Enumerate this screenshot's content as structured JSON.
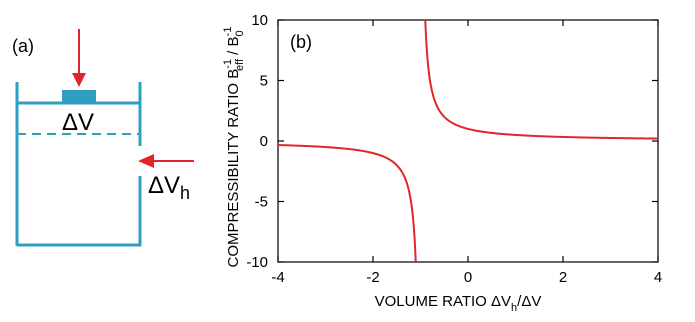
{
  "panel_a": {
    "label": "(a)",
    "delta_v": "ΔV",
    "delta_vh_main": "ΔV",
    "delta_vh_sub": "h",
    "container_color": "#2e9fc0",
    "arrow_color": "#e0262b"
  },
  "chart_data": {
    "type": "line",
    "panel_label": "(b)",
    "xlabel": "VOLUME RATIO   ΔV",
    "xlabel_sub": "h",
    "xlabel_tail": "/ΔV",
    "ylabel": "COMPRESSIBILITY RATIO  B",
    "ylabel_sup1": "-1",
    "ylabel_sub": "eff",
    "ylabel_mid": " / B",
    "ylabel_sub2": "0",
    "ylabel_sup2": "-1",
    "xlim": [
      -4,
      4
    ],
    "ylim": [
      -10,
      10
    ],
    "x_ticks": [
      -4,
      -2,
      0,
      2,
      4
    ],
    "x_tick_labels": [
      "-4",
      "-2",
      "0",
      "2",
      "4"
    ],
    "y_ticks": [
      -10,
      -5,
      0,
      5,
      10
    ],
    "y_tick_labels": [
      "-10",
      "-5",
      "0",
      "5",
      "10"
    ],
    "grid": false,
    "line_color": "#e0262b",
    "series": [
      {
        "x": [
          -4.0,
          -3.5,
          -3.0,
          -2.5,
          -2.0,
          -1.8,
          -1.6,
          -1.4,
          -1.3,
          -1.2,
          -1.15,
          -1.1
        ],
        "y": [
          -0.333,
          -0.4,
          -0.5,
          -0.667,
          -1.0,
          -1.25,
          -1.667,
          -2.5,
          -3.333,
          -5.0,
          -6.667,
          -10.0
        ]
      },
      {
        "x": [
          -0.9,
          -0.85,
          -0.8,
          -0.7,
          -0.6,
          -0.5,
          -0.4,
          -0.2,
          0.0,
          0.5,
          1.0,
          1.5,
          2.0,
          2.5,
          3.0,
          3.5,
          4.0
        ],
        "y": [
          10.0,
          6.667,
          5.0,
          3.333,
          2.5,
          2.0,
          1.667,
          1.25,
          1.0,
          0.667,
          0.5,
          0.4,
          0.333,
          0.286,
          0.25,
          0.222,
          0.2
        ]
      }
    ]
  }
}
